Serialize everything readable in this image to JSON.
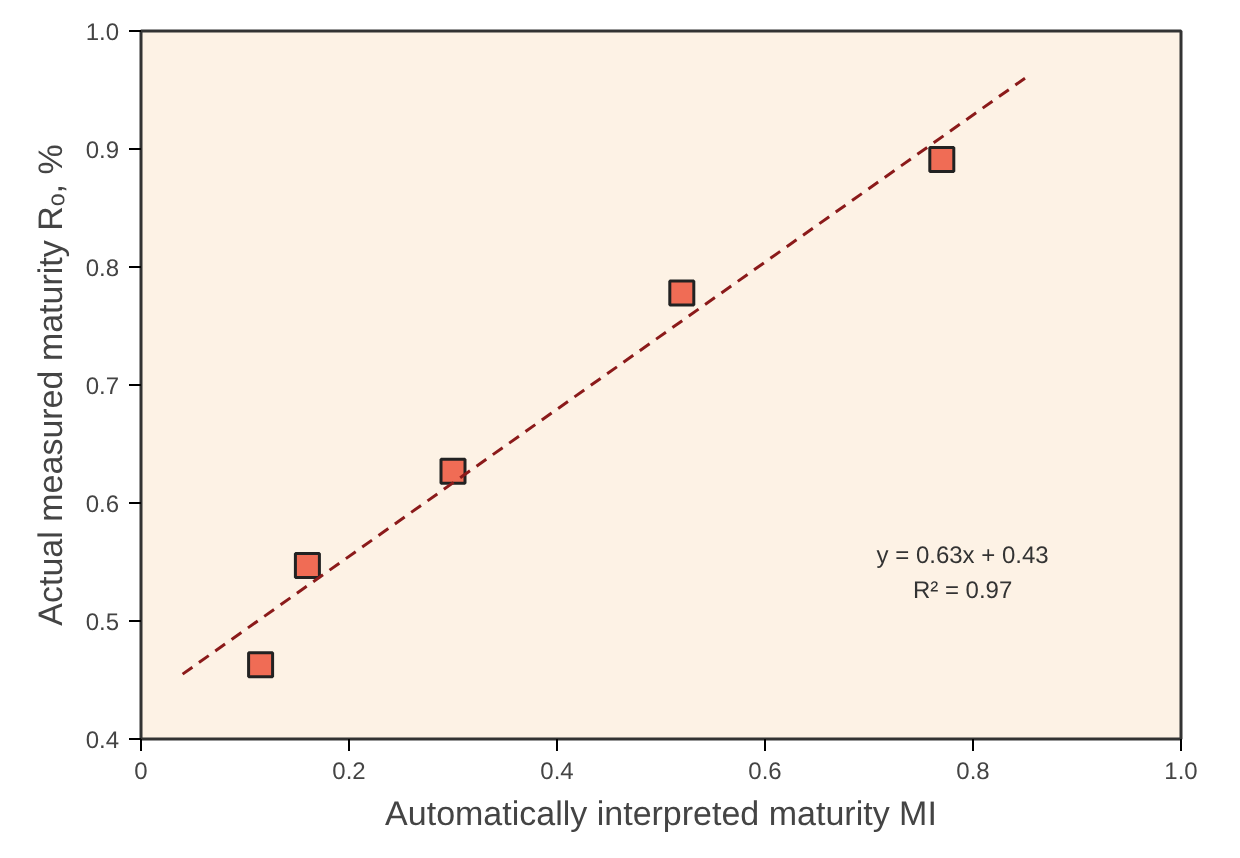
{
  "chart_data": {
    "type": "scatter",
    "xlabel": "Automatically interpreted maturity MI",
    "ylabel": "Actual measured maturity Rₒ, %",
    "xlim": [
      0,
      1.0
    ],
    "ylim": [
      0.4,
      1.0
    ],
    "xticks": [
      0,
      0.2,
      0.4,
      0.6,
      0.8,
      {
        "value": 1.0,
        "label": "1.0"
      }
    ],
    "yticks": [
      0.4,
      0.5,
      0.6,
      0.7,
      0.8,
      0.9,
      {
        "value": 1.0,
        "label": "1.0"
      }
    ],
    "grid": false,
    "series": [
      {
        "marker": "square",
        "color": "#f06c55",
        "x": [
          0.115,
          0.16,
          0.3,
          0.52,
          0.77
        ],
        "values": [
          0.463,
          0.547,
          0.627,
          0.778,
          0.891
        ]
      },
      {
        "type": "line",
        "line_style": "dashed",
        "color": "#8b1a1a",
        "x": [
          0.04,
          0.85
        ],
        "values": [
          0.455,
          0.96
        ]
      }
    ],
    "annotations": [
      "y = 0.63x + 0.43",
      "R² = 0.97"
    ]
  }
}
